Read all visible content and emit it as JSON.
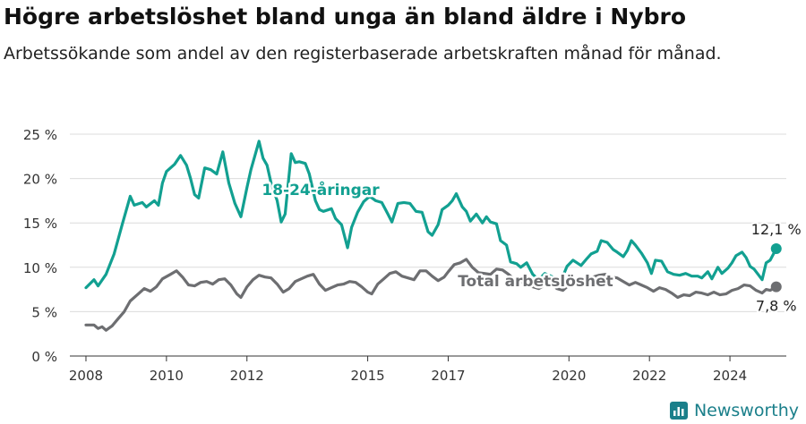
{
  "title": "Högre arbetslöshet bland unga än bland äldre i Nybro",
  "subtitle": "Arbetssökande som andel av den registerbaserade arbetskraften månad för månad.",
  "brand": "Newsworthy",
  "chart_data": {
    "type": "line",
    "xlabel": "",
    "ylabel": "",
    "ylim": [
      0,
      25
    ],
    "xlim": [
      2007.6,
      2025.4
    ],
    "yticks": [
      {
        "v": 0,
        "label": "0 %"
      },
      {
        "v": 5,
        "label": "5 %"
      },
      {
        "v": 10,
        "label": "10 %"
      },
      {
        "v": 15,
        "label": "15 %"
      },
      {
        "v": 20,
        "label": "20 %"
      },
      {
        "v": 25,
        "label": "25 %"
      }
    ],
    "xticks": [
      {
        "v": 2008,
        "label": "2008"
      },
      {
        "v": 2010,
        "label": "2010"
      },
      {
        "v": 2012,
        "label": "2012"
      },
      {
        "v": 2015,
        "label": "2015"
      },
      {
        "v": 2017,
        "label": "2017"
      },
      {
        "v": 2020,
        "label": "2020"
      },
      {
        "v": 2022,
        "label": "2022"
      },
      {
        "v": 2024,
        "label": "2024"
      }
    ],
    "grid": true,
    "series": [
      {
        "name": "18-24-åringar",
        "color": "#12a091",
        "end_label": "12,1 %",
        "points": [
          [
            2008.0,
            7.7
          ],
          [
            2008.2,
            8.6
          ],
          [
            2008.3,
            7.9
          ],
          [
            2008.5,
            9.2
          ],
          [
            2008.7,
            11.5
          ],
          [
            2008.9,
            14.8
          ],
          [
            2009.1,
            18.0
          ],
          [
            2009.2,
            17.0
          ],
          [
            2009.4,
            17.3
          ],
          [
            2009.5,
            16.8
          ],
          [
            2009.7,
            17.5
          ],
          [
            2009.8,
            17.0
          ],
          [
            2009.9,
            19.5
          ],
          [
            2010.0,
            20.8
          ],
          [
            2010.2,
            21.6
          ],
          [
            2010.35,
            22.6
          ],
          [
            2010.5,
            21.5
          ],
          [
            2010.6,
            20.0
          ],
          [
            2010.7,
            18.2
          ],
          [
            2010.8,
            17.8
          ],
          [
            2010.95,
            21.2
          ],
          [
            2011.1,
            21.0
          ],
          [
            2011.25,
            20.5
          ],
          [
            2011.4,
            23.0
          ],
          [
            2011.55,
            19.5
          ],
          [
            2011.7,
            17.2
          ],
          [
            2011.85,
            15.7
          ],
          [
            2012.0,
            19.0
          ],
          [
            2012.1,
            21.0
          ],
          [
            2012.2,
            22.6
          ],
          [
            2012.3,
            24.2
          ],
          [
            2012.4,
            22.3
          ],
          [
            2012.5,
            21.5
          ],
          [
            2012.6,
            19.5
          ],
          [
            2012.75,
            17.5
          ],
          [
            2012.85,
            15.1
          ],
          [
            2012.95,
            16.0
          ],
          [
            2013.1,
            22.8
          ],
          [
            2013.2,
            21.8
          ],
          [
            2013.3,
            21.9
          ],
          [
            2013.45,
            21.7
          ],
          [
            2013.55,
            20.5
          ],
          [
            2013.7,
            17.5
          ],
          [
            2013.8,
            16.5
          ],
          [
            2013.9,
            16.3
          ],
          [
            2014.1,
            16.6
          ],
          [
            2014.2,
            15.5
          ],
          [
            2014.35,
            14.8
          ],
          [
            2014.5,
            12.2
          ],
          [
            2014.6,
            14.5
          ],
          [
            2014.75,
            16.2
          ],
          [
            2014.9,
            17.4
          ],
          [
            2015.05,
            18.0
          ],
          [
            2015.2,
            17.5
          ],
          [
            2015.35,
            17.3
          ],
          [
            2015.5,
            16.0
          ],
          [
            2015.6,
            15.1
          ],
          [
            2015.75,
            17.2
          ],
          [
            2015.9,
            17.3
          ],
          [
            2016.05,
            17.2
          ],
          [
            2016.2,
            16.3
          ],
          [
            2016.35,
            16.2
          ],
          [
            2016.5,
            14.0
          ],
          [
            2016.6,
            13.6
          ],
          [
            2016.75,
            14.8
          ],
          [
            2016.85,
            16.5
          ],
          [
            2017.0,
            17.0
          ],
          [
            2017.1,
            17.5
          ],
          [
            2017.2,
            18.3
          ],
          [
            2017.35,
            16.8
          ],
          [
            2017.45,
            16.3
          ],
          [
            2017.55,
            15.2
          ],
          [
            2017.7,
            16.0
          ],
          [
            2017.85,
            15.0
          ],
          [
            2017.95,
            15.7
          ],
          [
            2018.05,
            15.1
          ],
          [
            2018.2,
            14.9
          ],
          [
            2018.3,
            13.0
          ],
          [
            2018.45,
            12.5
          ],
          [
            2018.55,
            10.6
          ],
          [
            2018.7,
            10.4
          ],
          [
            2018.8,
            10.0
          ],
          [
            2018.95,
            10.5
          ],
          [
            2019.1,
            9.2
          ],
          [
            2019.25,
            8.6
          ],
          [
            2019.4,
            9.3
          ],
          [
            2019.55,
            9.0
          ],
          [
            2019.7,
            8.7
          ],
          [
            2019.85,
            9.0
          ],
          [
            2019.95,
            10.1
          ],
          [
            2020.1,
            10.8
          ],
          [
            2020.2,
            10.5
          ],
          [
            2020.3,
            10.2
          ],
          [
            2020.45,
            11.0
          ],
          [
            2020.55,
            11.5
          ],
          [
            2020.7,
            11.8
          ],
          [
            2020.8,
            13.0
          ],
          [
            2020.95,
            12.8
          ],
          [
            2021.1,
            12.0
          ],
          [
            2021.2,
            11.7
          ],
          [
            2021.35,
            11.2
          ],
          [
            2021.45,
            11.9
          ],
          [
            2021.55,
            13.0
          ],
          [
            2021.65,
            12.5
          ],
          [
            2021.8,
            11.6
          ],
          [
            2021.95,
            10.5
          ],
          [
            2022.05,
            9.3
          ],
          [
            2022.15,
            10.8
          ],
          [
            2022.3,
            10.7
          ],
          [
            2022.45,
            9.5
          ],
          [
            2022.6,
            9.2
          ],
          [
            2022.75,
            9.1
          ],
          [
            2022.9,
            9.3
          ],
          [
            2023.05,
            9.0
          ],
          [
            2023.2,
            9.0
          ],
          [
            2023.3,
            8.8
          ],
          [
            2023.45,
            9.5
          ],
          [
            2023.55,
            8.7
          ],
          [
            2023.7,
            10.0
          ],
          [
            2023.8,
            9.3
          ],
          [
            2023.95,
            9.9
          ],
          [
            2024.05,
            10.5
          ],
          [
            2024.15,
            11.3
          ],
          [
            2024.3,
            11.7
          ],
          [
            2024.4,
            11.1
          ],
          [
            2024.5,
            10.1
          ],
          [
            2024.6,
            9.8
          ],
          [
            2024.7,
            9.2
          ],
          [
            2024.8,
            8.6
          ],
          [
            2024.9,
            10.5
          ],
          [
            2025.0,
            10.8
          ],
          [
            2025.15,
            12.1
          ]
        ]
      },
      {
        "name": "Total arbetslöshet",
        "color": "#6d6e71",
        "end_label": "7,8 %",
        "points": [
          [
            2008.0,
            3.5
          ],
          [
            2008.2,
            3.5
          ],
          [
            2008.3,
            3.1
          ],
          [
            2008.4,
            3.3
          ],
          [
            2008.5,
            2.9
          ],
          [
            2008.65,
            3.4
          ],
          [
            2008.8,
            4.2
          ],
          [
            2008.95,
            5.0
          ],
          [
            2009.1,
            6.2
          ],
          [
            2009.3,
            7.0
          ],
          [
            2009.45,
            7.6
          ],
          [
            2009.6,
            7.3
          ],
          [
            2009.75,
            7.8
          ],
          [
            2009.9,
            8.7
          ],
          [
            2010.1,
            9.2
          ],
          [
            2010.25,
            9.6
          ],
          [
            2010.4,
            8.9
          ],
          [
            2010.55,
            8.0
          ],
          [
            2010.7,
            7.9
          ],
          [
            2010.85,
            8.3
          ],
          [
            2011.0,
            8.4
          ],
          [
            2011.15,
            8.1
          ],
          [
            2011.3,
            8.6
          ],
          [
            2011.45,
            8.7
          ],
          [
            2011.6,
            8.0
          ],
          [
            2011.75,
            7.0
          ],
          [
            2011.85,
            6.6
          ],
          [
            2012.0,
            7.8
          ],
          [
            2012.15,
            8.6
          ],
          [
            2012.3,
            9.1
          ],
          [
            2012.45,
            8.9
          ],
          [
            2012.6,
            8.8
          ],
          [
            2012.75,
            8.1
          ],
          [
            2012.9,
            7.2
          ],
          [
            2013.05,
            7.6
          ],
          [
            2013.2,
            8.4
          ],
          [
            2013.35,
            8.7
          ],
          [
            2013.5,
            9.0
          ],
          [
            2013.65,
            9.2
          ],
          [
            2013.8,
            8.1
          ],
          [
            2013.95,
            7.4
          ],
          [
            2014.1,
            7.7
          ],
          [
            2014.25,
            8.0
          ],
          [
            2014.4,
            8.1
          ],
          [
            2014.55,
            8.4
          ],
          [
            2014.7,
            8.3
          ],
          [
            2014.85,
            7.8
          ],
          [
            2015.0,
            7.2
          ],
          [
            2015.1,
            7.0
          ],
          [
            2015.25,
            8.1
          ],
          [
            2015.4,
            8.7
          ],
          [
            2015.55,
            9.3
          ],
          [
            2015.7,
            9.5
          ],
          [
            2015.85,
            9.0
          ],
          [
            2016.0,
            8.8
          ],
          [
            2016.15,
            8.6
          ],
          [
            2016.3,
            9.6
          ],
          [
            2016.45,
            9.6
          ],
          [
            2016.6,
            9.0
          ],
          [
            2016.75,
            8.5
          ],
          [
            2016.9,
            8.9
          ],
          [
            2017.0,
            9.5
          ],
          [
            2017.15,
            10.3
          ],
          [
            2017.3,
            10.5
          ],
          [
            2017.45,
            10.9
          ],
          [
            2017.6,
            10.0
          ],
          [
            2017.75,
            9.4
          ],
          [
            2017.9,
            9.3
          ],
          [
            2018.05,
            9.2
          ],
          [
            2018.2,
            9.8
          ],
          [
            2018.35,
            9.7
          ],
          [
            2018.5,
            9.2
          ],
          [
            2018.65,
            8.6
          ],
          [
            2018.8,
            8.4
          ],
          [
            2018.95,
            8.1
          ],
          [
            2019.1,
            7.8
          ],
          [
            2019.25,
            7.6
          ],
          [
            2019.4,
            8.0
          ],
          [
            2019.55,
            8.3
          ],
          [
            2019.7,
            7.6
          ],
          [
            2019.85,
            7.4
          ],
          [
            2020.0,
            8.0
          ],
          [
            2020.15,
            8.3
          ],
          [
            2020.3,
            8.5
          ],
          [
            2020.45,
            8.7
          ],
          [
            2020.6,
            8.9
          ],
          [
            2020.75,
            9.1
          ],
          [
            2020.9,
            9.2
          ],
          [
            2021.05,
            8.9
          ],
          [
            2021.2,
            8.8
          ],
          [
            2021.35,
            8.4
          ],
          [
            2021.5,
            8.0
          ],
          [
            2021.65,
            8.3
          ],
          [
            2021.8,
            8.0
          ],
          [
            2021.95,
            7.7
          ],
          [
            2022.1,
            7.3
          ],
          [
            2022.25,
            7.7
          ],
          [
            2022.4,
            7.5
          ],
          [
            2022.55,
            7.1
          ],
          [
            2022.7,
            6.6
          ],
          [
            2022.85,
            6.9
          ],
          [
            2023.0,
            6.8
          ],
          [
            2023.15,
            7.2
          ],
          [
            2023.3,
            7.1
          ],
          [
            2023.45,
            6.9
          ],
          [
            2023.6,
            7.2
          ],
          [
            2023.75,
            6.9
          ],
          [
            2023.9,
            7.0
          ],
          [
            2024.05,
            7.4
          ],
          [
            2024.2,
            7.6
          ],
          [
            2024.35,
            8.0
          ],
          [
            2024.5,
            7.9
          ],
          [
            2024.65,
            7.4
          ],
          [
            2024.8,
            7.1
          ],
          [
            2024.9,
            7.5
          ],
          [
            2025.0,
            7.4
          ],
          [
            2025.15,
            7.8
          ]
        ]
      }
    ]
  }
}
